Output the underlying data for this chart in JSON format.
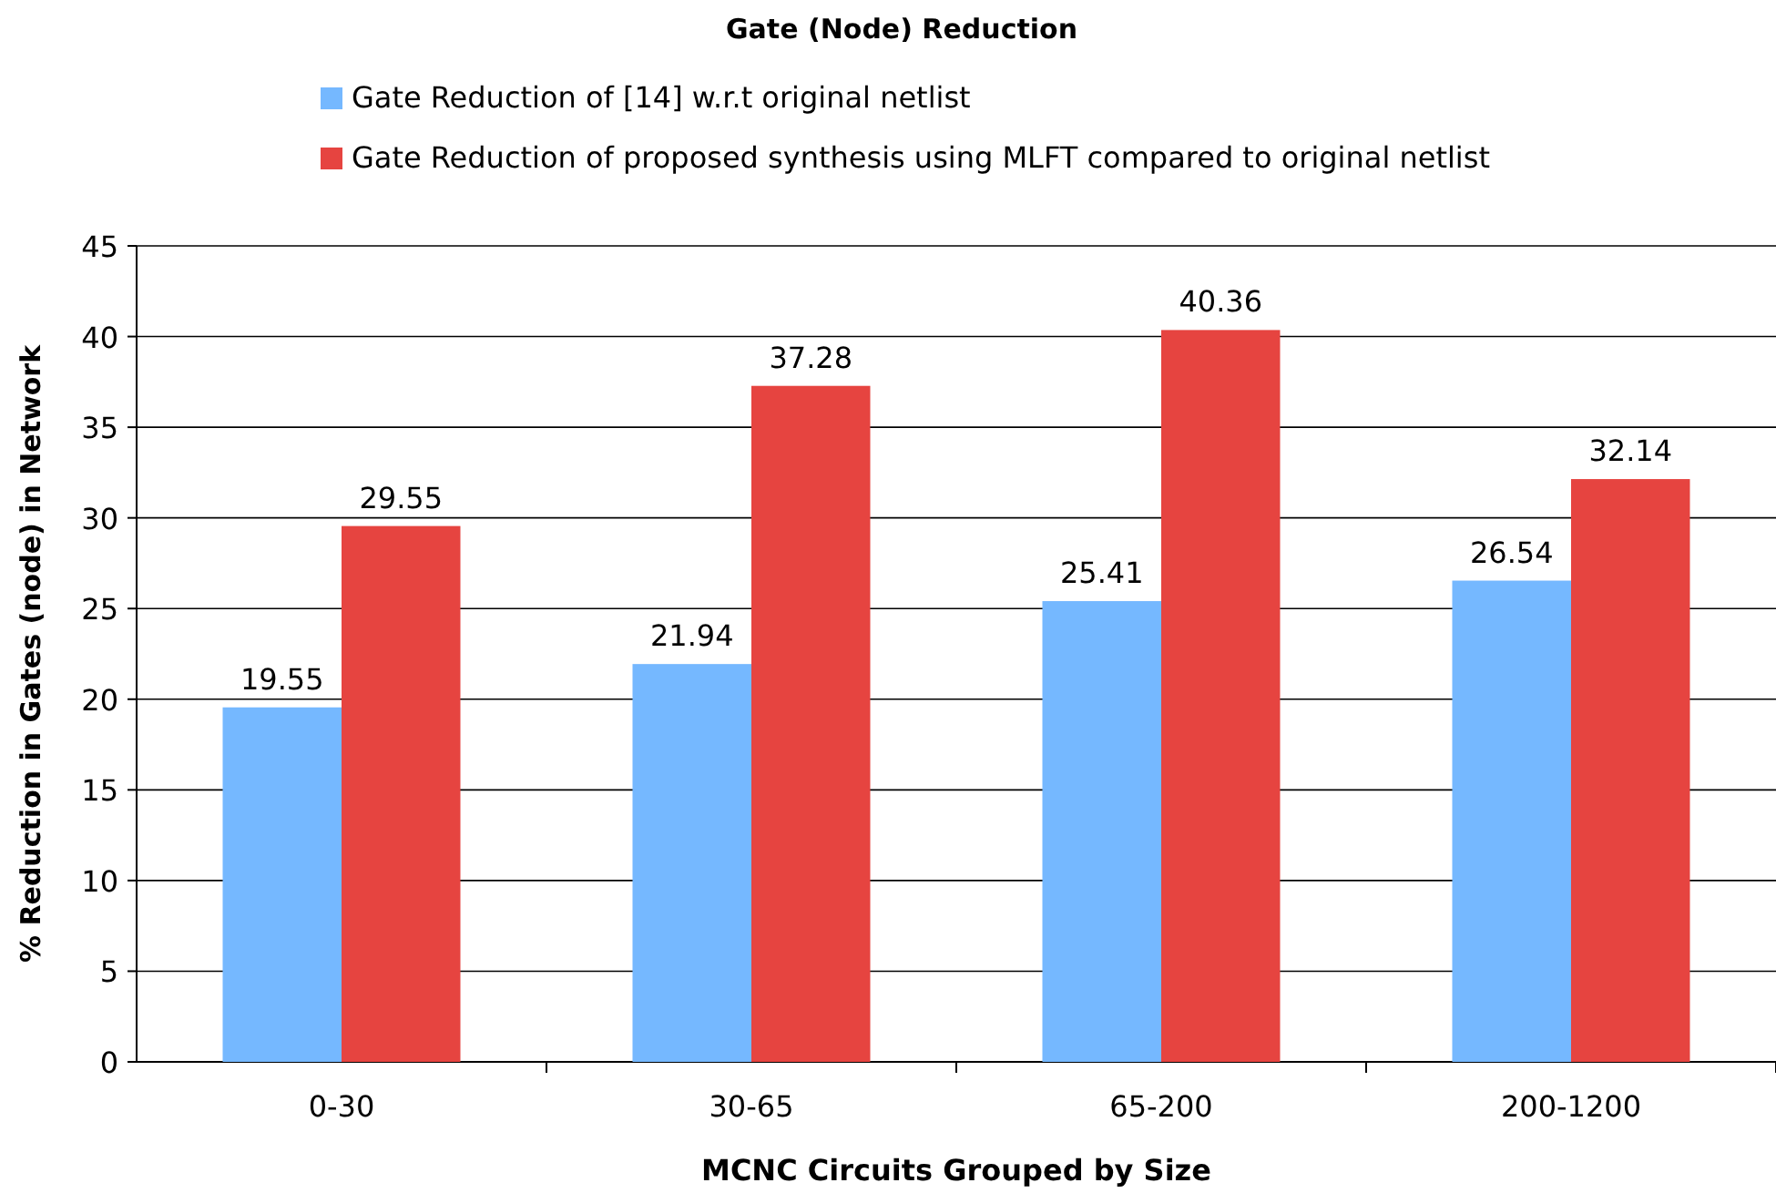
{
  "chart_data": {
    "type": "bar",
    "title": "Gate (Node) Reduction",
    "xlabel": "MCNC Circuits Grouped by Size",
    "ylabel": "% Reduction in Gates (node) in Network",
    "categories": [
      "0-30",
      "30-65",
      "65-200",
      "200-1200"
    ],
    "series": [
      {
        "name": "Gate Reduction of [14] w.r.t original netlist",
        "color": "#75b8ff",
        "values": [
          19.55,
          21.94,
          25.41,
          26.54
        ]
      },
      {
        "name": "Gate Reduction of proposed synthesis using MLFT compared to original netlist",
        "color": "#e64440",
        "values": [
          29.55,
          37.28,
          40.36,
          32.14
        ]
      }
    ],
    "ylim": [
      0,
      45
    ],
    "yticks": [
      0,
      5,
      10,
      15,
      20,
      25,
      30,
      35,
      40,
      45
    ],
    "grid": "y",
    "legend": "top",
    "data_labels": true
  }
}
